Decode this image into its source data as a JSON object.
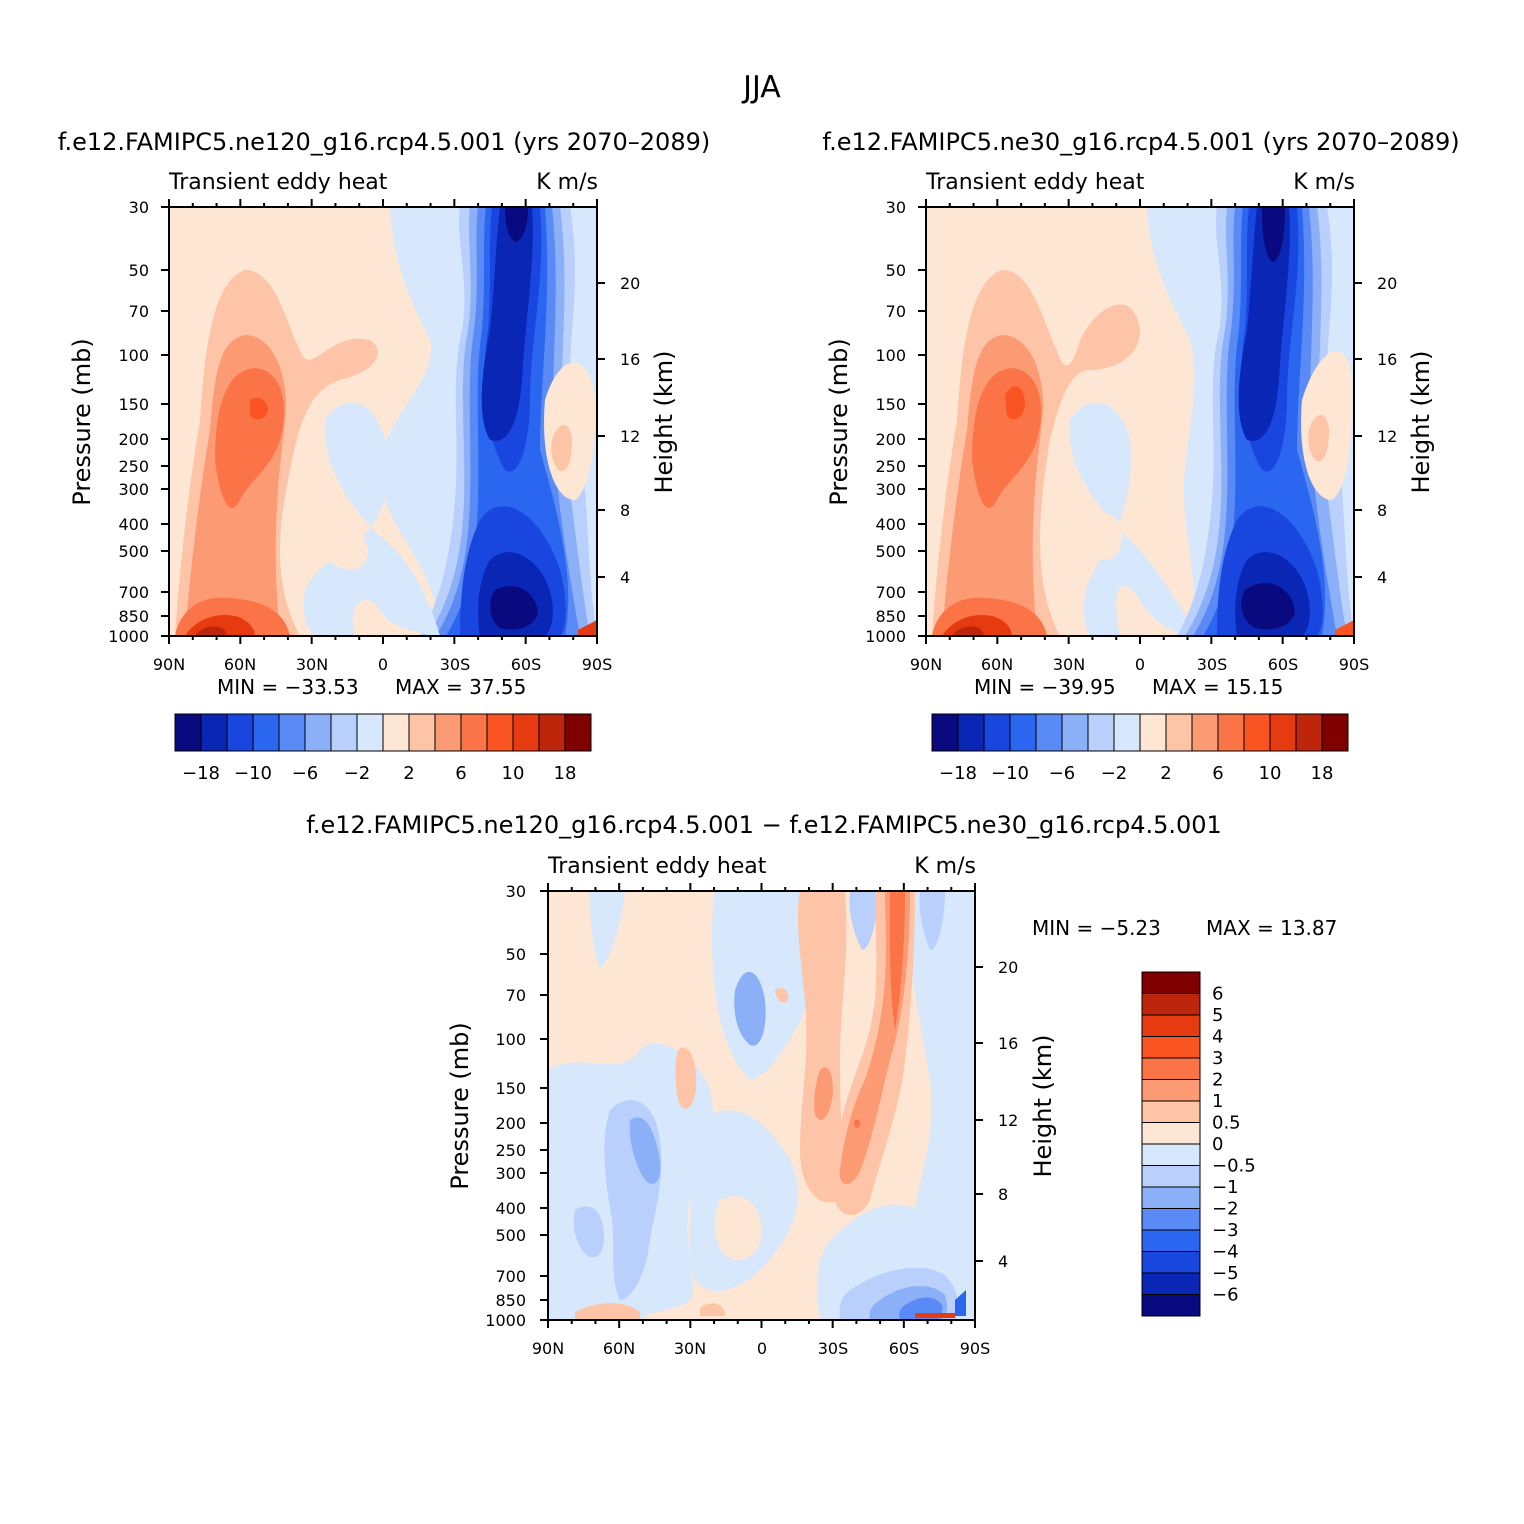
{
  "title": "JJA",
  "colors": {
    "ramp14": [
      "#0a0a80",
      "#0a26b4",
      "#1a46e0",
      "#2a66f0",
      "#5a8af5",
      "#8cb0f8",
      "#b8d0fb",
      "#d8e8fc",
      "#fde6d4",
      "#fdc4a8",
      "#fc9a74",
      "#fb7448",
      "#f95422",
      "#e63a10",
      "#bd260a",
      "#800000"
    ],
    "ramp15": [
      "#0a0a80",
      "#0a26b4",
      "#1a46e0",
      "#2a66f0",
      "#5a8af5",
      "#8cb0f8",
      "#b8d0fb",
      "#d8e8fc",
      "#fde6d4",
      "#fdc4a8",
      "#fc9a74",
      "#fb7448",
      "#f95422",
      "#e63a10",
      "#bd260a",
      "#800000"
    ]
  },
  "chart_data": [
    {
      "type": "heatmap",
      "panel": "ne120",
      "title": "f.e12.FAMIPC5.ne120_g16.rcp4.5.001 (yrs 2070–2089)",
      "left_label": "Transient eddy heat",
      "right_label": "K m/s",
      "ylabel": "Pressure (mb)",
      "y2label": "Height (km)",
      "x_ticks": [
        "90N",
        "60N",
        "30N",
        "0",
        "30S",
        "60S",
        "90S"
      ],
      "y_ticks": [
        "30",
        "50",
        "70",
        "100",
        "150",
        "200",
        "250",
        "300",
        "400",
        "500",
        "700",
        "850",
        "1000"
      ],
      "y2_ticks": [
        "20",
        "16",
        "12",
        "8",
        "4"
      ],
      "min_text": "MIN = −33.53",
      "max_text": "MAX =  37.55",
      "colorbar_labels": [
        "−18",
        "−10",
        "−6",
        "−2",
        "2",
        "6",
        "10",
        "18"
      ]
    },
    {
      "type": "heatmap",
      "panel": "ne30",
      "title": "f.e12.FAMIPC5.ne30_g16.rcp4.5.001 (yrs 2070–2089)",
      "left_label": "Transient eddy heat",
      "right_label": "K m/s",
      "ylabel": "Pressure (mb)",
      "y2label": "Height (km)",
      "x_ticks": [
        "90N",
        "60N",
        "30N",
        "0",
        "30S",
        "60S",
        "90S"
      ],
      "y_ticks": [
        "30",
        "50",
        "70",
        "100",
        "150",
        "200",
        "250",
        "300",
        "400",
        "500",
        "700",
        "850",
        "1000"
      ],
      "y2_ticks": [
        "20",
        "16",
        "12",
        "8",
        "4"
      ],
      "min_text": "MIN = −39.95",
      "max_text": "MAX =  15.15",
      "colorbar_labels": [
        "−18",
        "−10",
        "−6",
        "−2",
        "2",
        "6",
        "10",
        "18"
      ]
    },
    {
      "type": "heatmap",
      "panel": "diff",
      "title": "f.e12.FAMIPC5.ne120_g16.rcp4.5.001 − f.e12.FAMIPC5.ne30_g16.rcp4.5.001",
      "left_label": "Transient eddy heat",
      "right_label": "K m/s",
      "ylabel": "Pressure (mb)",
      "y2label": "Height (km)",
      "x_ticks": [
        "90N",
        "60N",
        "30N",
        "0",
        "30S",
        "60S",
        "90S"
      ],
      "y_ticks": [
        "30",
        "50",
        "70",
        "100",
        "150",
        "200",
        "250",
        "300",
        "400",
        "500",
        "700",
        "850",
        "1000"
      ],
      "y2_ticks": [
        "20",
        "16",
        "12",
        "8",
        "4"
      ],
      "min_text": "MIN =  −5.23",
      "max_text": "MAX =  13.87",
      "colorbar_labels": [
        "6",
        "5",
        "4",
        "3",
        "2",
        "1",
        "0.5",
        "0",
        "−0.5",
        "−1",
        "−2",
        "−3",
        "−4",
        "−5",
        "−6"
      ]
    }
  ]
}
